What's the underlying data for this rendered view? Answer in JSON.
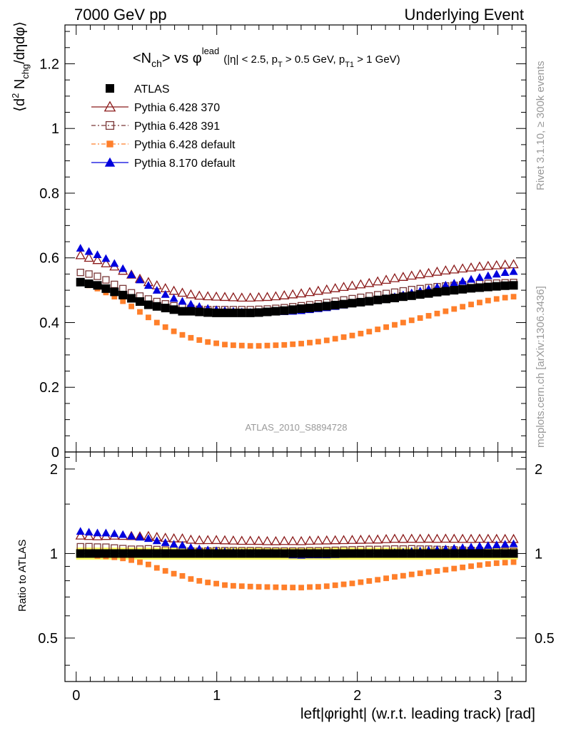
{
  "header": {
    "left": "7000 GeV pp",
    "right": "Underlying Event"
  },
  "side_text": {
    "rivet": "Rivet 3.1.10, ≥ 300k events",
    "mcplots": "mcplots.cern.ch [arXiv:1306.3436]"
  },
  "chart_data": {
    "type": "scatter",
    "title_main": "<N",
    "title_main_sub": "ch",
    "title_main_rest": "> vs φ",
    "title_main_sup": "lead",
    "title_cuts": "(|η| < 2.5, p",
    "title_cuts_sub1": "T",
    "title_cuts_mid": " > 0.5 GeV, p",
    "title_cuts_sub2": "T1",
    "title_cuts_end": " > 1 GeV)",
    "watermark": "ATLAS_2010_S8894728",
    "ylabel": "⟨d² N_chg/dηdφ⟩",
    "ylabel_parts": {
      "a": "⟨d",
      "sup": "2",
      "b": " N",
      "sub": "chg",
      "c": "/dηdφ⟩"
    },
    "ratio_ylabel": "Ratio to ATLAS",
    "xlabel": "left|φright| (w.r.t. leading track) [rad]",
    "xlim": [
      -0.08,
      3.2
    ],
    "ylim": [
      0,
      1.32
    ],
    "ratio_ylim": [
      0.35,
      2.3
    ],
    "x_ticks": [
      "0",
      "1",
      "2",
      "3"
    ],
    "y_ticks": [
      "0",
      "0.2",
      "0.4",
      "0.6",
      "0.8",
      "1",
      "1.2"
    ],
    "ratio_y_ticks": [
      "0.5",
      "1",
      "2"
    ],
    "ratio_band_colors": [
      "#ffff66",
      "#99ee66"
    ],
    "series": [
      {
        "name": "ATLAS",
        "color": "#000000",
        "marker": "filled-square",
        "y": [
          0.525,
          0.52,
          0.515,
          0.505,
          0.495,
          0.485,
          0.475,
          0.465,
          0.455,
          0.45,
          0.445,
          0.44,
          0.435,
          0.435,
          0.433,
          0.431,
          0.43,
          0.43,
          0.43,
          0.43,
          0.43,
          0.431,
          0.433,
          0.435,
          0.437,
          0.44,
          0.443,
          0.445,
          0.448,
          0.451,
          0.454,
          0.457,
          0.46,
          0.463,
          0.466,
          0.47,
          0.473,
          0.476,
          0.48,
          0.483,
          0.487,
          0.49,
          0.494,
          0.497,
          0.5,
          0.503,
          0.506,
          0.508,
          0.51,
          0.512,
          0.514,
          0.515
        ]
      },
      {
        "name": "Pythia 6.428 370",
        "color": "#8b1a1a",
        "marker": "open-triangle",
        "y": [
          0.608,
          0.6,
          0.593,
          0.583,
          0.573,
          0.56,
          0.548,
          0.535,
          0.525,
          0.515,
          0.506,
          0.498,
          0.492,
          0.487,
          0.483,
          0.481,
          0.48,
          0.479,
          0.478,
          0.477,
          0.477,
          0.478,
          0.479,
          0.481,
          0.484,
          0.487,
          0.49,
          0.494,
          0.498,
          0.502,
          0.506,
          0.51,
          0.514,
          0.518,
          0.522,
          0.527,
          0.532,
          0.537,
          0.541,
          0.545,
          0.549,
          0.553,
          0.557,
          0.561,
          0.564,
          0.567,
          0.57,
          0.573,
          0.575,
          0.577,
          0.579,
          0.58
        ]
      },
      {
        "name": "Pythia 6.428 391",
        "color": "#7a3838",
        "marker": "open-square",
        "y": [
          0.555,
          0.55,
          0.543,
          0.532,
          0.518,
          0.505,
          0.492,
          0.482,
          0.473,
          0.465,
          0.458,
          0.452,
          0.447,
          0.444,
          0.441,
          0.44,
          0.44,
          0.44,
          0.44,
          0.44,
          0.44,
          0.441,
          0.442,
          0.444,
          0.446,
          0.449,
          0.452,
          0.455,
          0.458,
          0.462,
          0.466,
          0.47,
          0.474,
          0.478,
          0.482,
          0.486,
          0.49,
          0.494,
          0.498,
          0.502,
          0.505,
          0.508,
          0.511,
          0.513,
          0.515,
          0.517,
          0.519,
          0.52,
          0.521,
          0.522,
          0.523,
          0.524
        ]
      },
      {
        "name": "Pythia 6.428 default",
        "color": "#ff7f2a",
        "marker": "filled-square-small",
        "y": [
          0.525,
          0.515,
          0.505,
          0.493,
          0.48,
          0.466,
          0.45,
          0.433,
          0.416,
          0.4,
          0.386,
          0.373,
          0.362,
          0.353,
          0.346,
          0.34,
          0.336,
          0.332,
          0.33,
          0.329,
          0.328,
          0.328,
          0.329,
          0.33,
          0.331,
          0.333,
          0.335,
          0.338,
          0.341,
          0.345,
          0.35,
          0.355,
          0.36,
          0.366,
          0.372,
          0.379,
          0.386,
          0.393,
          0.4,
          0.407,
          0.414,
          0.421,
          0.428,
          0.435,
          0.442,
          0.449,
          0.456,
          0.462,
          0.468,
          0.473,
          0.477,
          0.48
        ]
      },
      {
        "name": "Pythia 8.170 default",
        "color": "#0000dd",
        "marker": "filled-triangle",
        "y": [
          0.63,
          0.62,
          0.61,
          0.598,
          0.583,
          0.567,
          0.548,
          0.532,
          0.515,
          0.5,
          0.487,
          0.475,
          0.466,
          0.457,
          0.45,
          0.444,
          0.44,
          0.437,
          0.435,
          0.433,
          0.432,
          0.432,
          0.432,
          0.433,
          0.434,
          0.435,
          0.437,
          0.44,
          0.443,
          0.446,
          0.45,
          0.454,
          0.458,
          0.462,
          0.466,
          0.47,
          0.475,
          0.48,
          0.486,
          0.492,
          0.498,
          0.504,
          0.51,
          0.516,
          0.522,
          0.528,
          0.534,
          0.54,
          0.545,
          0.55,
          0.555,
          0.558
        ]
      }
    ]
  }
}
